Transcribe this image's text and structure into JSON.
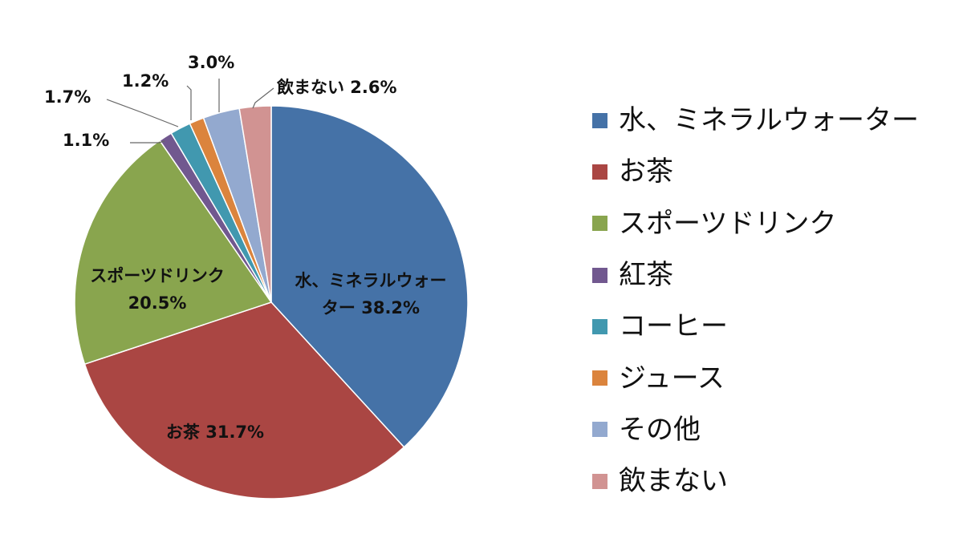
{
  "chart_data": {
    "type": "pie",
    "series": [
      {
        "name": "水、ミネラルウォーター",
        "value": 38.2,
        "color": "#4572A7",
        "label_lines": [
          "水、ミネラルウォー",
          "ター 38.2%"
        ]
      },
      {
        "name": "お茶",
        "value": 31.7,
        "color": "#AA4643",
        "label_lines": [
          "お茶 31.7%"
        ]
      },
      {
        "name": "スポーツドリンク",
        "value": 20.5,
        "color": "#89A54E",
        "label_lines": [
          "スポーツドリンク",
          "20.5%"
        ]
      },
      {
        "name": "紅茶",
        "value": 1.1,
        "color": "#71588F",
        "label_lines": [
          "1.1%"
        ]
      },
      {
        "name": "コーヒー",
        "value": 1.7,
        "color": "#4198AF",
        "label_lines": [
          "1.7%"
        ]
      },
      {
        "name": "ジュース",
        "value": 1.2,
        "color": "#DB843D",
        "label_lines": [
          "1.2%"
        ]
      },
      {
        "name": "その他",
        "value": 3.0,
        "color": "#93A9CF",
        "label_lines": [
          "3.0%"
        ]
      },
      {
        "name": "飲まない",
        "value": 2.6,
        "color": "#D19392",
        "label_lines": [
          "飲まない 2.6%"
        ]
      }
    ],
    "start": "12 o'clock",
    "direction": "clockwise",
    "legend_position": "right"
  }
}
